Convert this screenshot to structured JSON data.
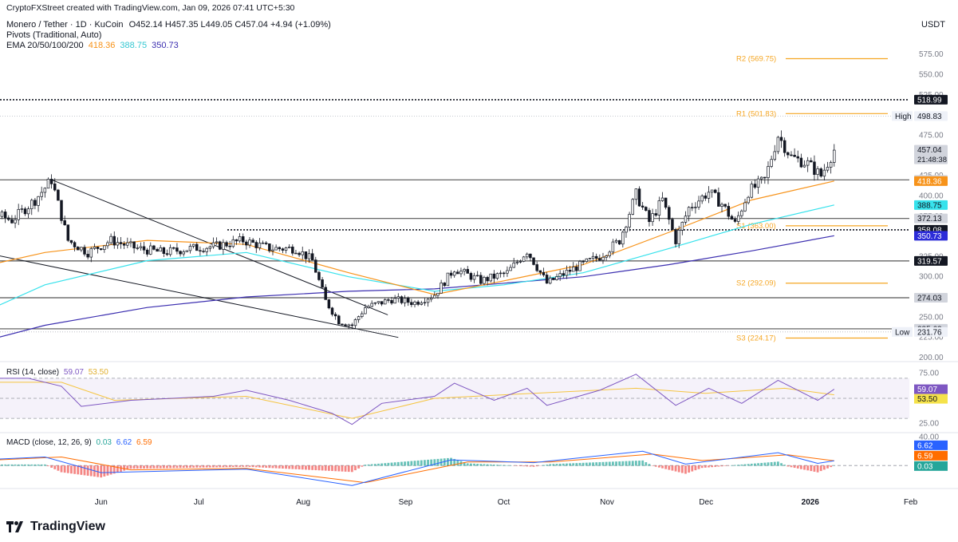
{
  "header": {
    "creator": "CryptoFXStreet created with TradingView.com, Jan 09, 2026 07:41 UTC+5:30",
    "symbol": "Monero / Tether · 1D · KuCoin",
    "ohlc": "O452.14  H457.35  L449.05  C457.04  +4.94 (+1.09%)",
    "pivots_label": "Pivots (Traditional, Auto)",
    "ema_label": "EMA 20/50/100/200",
    "ema_values": [
      "418.36",
      "388.75",
      "350.73"
    ],
    "currency": "USDT"
  },
  "brand": {
    "name": "TradingView"
  },
  "colors": {
    "up": "#089981",
    "down": "#f23645",
    "candle": "#131722",
    "ema50": "#f7931a",
    "ema100": "#37e2ec",
    "ema200": "#3c2fb0",
    "pivot": "#f5a623",
    "rsi": "#7e57c2",
    "rsi_ma": "#f5c542",
    "macd": "#2962ff",
    "signal": "#ff6d00"
  },
  "chart_data": [
    {
      "type": "candlestick",
      "name": "price",
      "ylim": [
        200,
        590
      ],
      "y_ticks": [
        200,
        225,
        250,
        275,
        300,
        325,
        350,
        375,
        400,
        425,
        450,
        475,
        500,
        525,
        550,
        575
      ],
      "y_tick_labels": [
        "200.00",
        "225.00",
        "250.00",
        "275.00",
        "300.00",
        "325.00",
        "350.00",
        "375.00",
        "400.00",
        "425.00",
        "450.00",
        "475.00",
        "500.00",
        "525.00",
        "550.00",
        "575.00"
      ],
      "x_labels": [
        {
          "date": "2025-06-01",
          "label": "Jun"
        },
        {
          "date": "2025-07-01",
          "label": "Jul"
        },
        {
          "date": "2025-08-01",
          "label": "Aug"
        },
        {
          "date": "2025-09-01",
          "label": "Sep"
        },
        {
          "date": "2025-10-01",
          "label": "Oct"
        },
        {
          "date": "2025-11-01",
          "label": "Nov"
        },
        {
          "date": "2025-12-01",
          "label": "Dec"
        },
        {
          "date": "2026-01-01",
          "label": "2026"
        },
        {
          "date": "2026-02-01",
          "label": "Feb"
        }
      ],
      "close_path": [
        [
          "2025-04-12",
          300
        ],
        [
          "2025-04-20",
          340
        ],
        [
          "2025-04-28",
          380
        ],
        [
          "2025-05-05",
          370
        ],
        [
          "2025-05-12",
          395
        ],
        [
          "2025-05-17",
          420
        ],
        [
          "2025-05-22",
          345
        ],
        [
          "2025-05-28",
          330
        ],
        [
          "2025-06-04",
          345
        ],
        [
          "2025-06-12",
          335
        ],
        [
          "2025-06-20",
          330
        ],
        [
          "2025-06-28",
          335
        ],
        [
          "2025-07-06",
          338
        ],
        [
          "2025-07-14",
          345
        ],
        [
          "2025-07-22",
          335
        ],
        [
          "2025-07-30",
          335
        ],
        [
          "2025-08-04",
          320
        ],
        [
          "2025-08-08",
          270
        ],
        [
          "2025-08-12",
          245
        ],
        [
          "2025-08-16",
          240
        ],
        [
          "2025-08-20",
          262
        ],
        [
          "2025-08-28",
          272
        ],
        [
          "2025-09-04",
          268
        ],
        [
          "2025-09-10",
          278
        ],
        [
          "2025-09-16",
          310
        ],
        [
          "2025-09-24",
          295
        ],
        [
          "2025-10-02",
          305
        ],
        [
          "2025-10-08",
          332
        ],
        [
          "2025-10-14",
          292
        ],
        [
          "2025-10-22",
          310
        ],
        [
          "2025-10-30",
          325
        ],
        [
          "2025-11-05",
          345
        ],
        [
          "2025-11-10",
          402
        ],
        [
          "2025-11-14",
          368
        ],
        [
          "2025-11-18",
          395
        ],
        [
          "2025-11-22",
          345
        ],
        [
          "2025-11-26",
          385
        ],
        [
          "2025-12-02",
          405
        ],
        [
          "2025-12-06",
          390
        ],
        [
          "2025-12-10",
          365
        ],
        [
          "2025-12-14",
          405
        ],
        [
          "2025-12-19",
          420
        ],
        [
          "2025-12-23",
          475
        ],
        [
          "2025-12-27",
          448
        ],
        [
          "2026-01-01",
          440
        ],
        [
          "2026-01-05",
          425
        ],
        [
          "2026-01-09",
          457
        ]
      ],
      "ema_50": [
        [
          "2025-04-12",
          300
        ],
        [
          "2025-05-15",
          330
        ],
        [
          "2025-06-15",
          345
        ],
        [
          "2025-07-15",
          340
        ],
        [
          "2025-08-15",
          305
        ],
        [
          "2025-09-10",
          278
        ],
        [
          "2025-10-01",
          295
        ],
        [
          "2025-10-25",
          315
        ],
        [
          "2025-11-20",
          355
        ],
        [
          "2025-12-15",
          395
        ],
        [
          "2026-01-09",
          418.36
        ]
      ],
      "ema_100": [
        [
          "2025-04-12",
          230
        ],
        [
          "2025-05-15",
          290
        ],
        [
          "2025-06-15",
          320
        ],
        [
          "2025-07-15",
          330
        ],
        [
          "2025-08-15",
          300
        ],
        [
          "2025-09-10",
          282
        ],
        [
          "2025-10-01",
          290
        ],
        [
          "2025-10-25",
          305
        ],
        [
          "2025-11-20",
          335
        ],
        [
          "2025-12-15",
          365
        ],
        [
          "2026-01-09",
          388.75
        ]
      ],
      "ema_200": [
        [
          "2025-04-12",
          205
        ],
        [
          "2025-05-15",
          240
        ],
        [
          "2025-06-15",
          262
        ],
        [
          "2025-07-15",
          275
        ],
        [
          "2025-08-15",
          282
        ],
        [
          "2025-09-10",
          285
        ],
        [
          "2025-10-01",
          292
        ],
        [
          "2025-10-25",
          300
        ],
        [
          "2025-11-20",
          315
        ],
        [
          "2025-12-15",
          332
        ],
        [
          "2026-01-09",
          350.73
        ]
      ],
      "pivots": [
        {
          "name": "R2",
          "label": "R2 (569.75)",
          "value": 569.75
        },
        {
          "name": "R1",
          "label": "R1 (501.83)",
          "value": 501.83
        },
        {
          "name": "S1",
          "label": "S1 (363.00)",
          "value": 363.0
        },
        {
          "name": "S2",
          "label": "S2 (292.09)",
          "value": 292.09
        },
        {
          "name": "S3",
          "label": "S3 (224.17)",
          "value": 224.17
        }
      ],
      "horizontal_levels": [
        419.85,
        372.13,
        319.57,
        274.03,
        235.63
      ],
      "dotted_levels": [
        518.99,
        358.08
      ],
      "trendline": {
        "start": [
          "2025-05-17",
          420
        ],
        "end": [
          "2025-08-22",
          245
        ]
      },
      "trendline_lower": {
        "start": [
          "2025-05-01",
          340
        ],
        "end": [
          "2025-08-30",
          225
        ]
      },
      "price_badges": [
        {
          "value": 518.99,
          "label": "518.99",
          "style": "black"
        },
        {
          "value": 498.83,
          "label": "498.83",
          "tag": "High",
          "style": "plain"
        },
        {
          "value": 457.04,
          "label": "457.04",
          "sub": "21:48:38",
          "style": "grey"
        },
        {
          "value": 419.85,
          "label": "419.85",
          "style": "grey"
        },
        {
          "value": 418.36,
          "label": "418.36",
          "style": "orange"
        },
        {
          "value": 388.75,
          "label": "388.75",
          "style": "cyan"
        },
        {
          "value": 372.13,
          "label": "372.13",
          "style": "grey"
        },
        {
          "value": 358.08,
          "label": "358.08",
          "style": "black"
        },
        {
          "value": 350.73,
          "label": "350.73",
          "style": "blue"
        },
        {
          "value": 319.57,
          "label": "319.57",
          "style": "black"
        },
        {
          "value": 274.03,
          "label": "274.03",
          "style": "grey"
        },
        {
          "value": 235.63,
          "label": "235.63",
          "style": "grey"
        },
        {
          "value": 231.76,
          "label": "231.76",
          "tag": "Low",
          "style": "plain"
        }
      ]
    },
    {
      "type": "line",
      "name": "rsi",
      "label": "RSI (14, close)",
      "values_label": [
        "59.07",
        "53.50"
      ],
      "ylim": [
        15,
        85
      ],
      "y_ticks": [
        25,
        50,
        75
      ],
      "y_tick_labels": [
        "25.00",
        "50.00",
        "75.00"
      ],
      "band": [
        30,
        70
      ],
      "rsi_path": [
        [
          "2025-04-12",
          70
        ],
        [
          "2025-05-10",
          70
        ],
        [
          "2025-05-20",
          62
        ],
        [
          "2025-05-26",
          42
        ],
        [
          "2025-06-10",
          48
        ],
        [
          "2025-07-05",
          52
        ],
        [
          "2025-07-15",
          58
        ],
        [
          "2025-07-28",
          48
        ],
        [
          "2025-08-10",
          35
        ],
        [
          "2025-08-16",
          24
        ],
        [
          "2025-08-25",
          45
        ],
        [
          "2025-09-10",
          52
        ],
        [
          "2025-09-16",
          65
        ],
        [
          "2025-09-28",
          48
        ],
        [
          "2025-10-08",
          60
        ],
        [
          "2025-10-14",
          43
        ],
        [
          "2025-10-30",
          58
        ],
        [
          "2025-11-10",
          74
        ],
        [
          "2025-11-22",
          43
        ],
        [
          "2025-12-02",
          60
        ],
        [
          "2025-12-12",
          45
        ],
        [
          "2025-12-23",
          68
        ],
        [
          "2026-01-04",
          48
        ],
        [
          "2026-01-09",
          59.07
        ]
      ],
      "rsi_ma_path": [
        [
          "2025-04-12",
          66
        ],
        [
          "2025-05-20",
          66
        ],
        [
          "2025-06-05",
          48
        ],
        [
          "2025-07-15",
          52
        ],
        [
          "2025-08-16",
          30
        ],
        [
          "2025-09-10",
          50
        ],
        [
          "2025-10-10",
          55
        ],
        [
          "2025-11-10",
          60
        ],
        [
          "2025-12-01",
          55
        ],
        [
          "2025-12-25",
          60
        ],
        [
          "2026-01-09",
          53.5
        ]
      ],
      "badges": [
        {
          "value": 59.07,
          "label": "59.07"
        },
        {
          "value": 53.5,
          "label": "53.50"
        }
      ]
    },
    {
      "type": "line",
      "name": "macd",
      "label": "MACD (close, 12, 26, 9)",
      "values_label": [
        "0.03",
        "6.62",
        "6.59"
      ],
      "ylim": [
        -30,
        45
      ],
      "y_ticks": [
        40
      ],
      "y_tick_labels": [
        "40.00"
      ],
      "macd_path": [
        [
          "2025-04-12",
          5
        ],
        [
          "2025-05-15",
          12
        ],
        [
          "2025-06-01",
          -10
        ],
        [
          "2025-07-15",
          -5
        ],
        [
          "2025-08-16",
          -28
        ],
        [
          "2025-09-15",
          8
        ],
        [
          "2025-10-10",
          4
        ],
        [
          "2025-11-12",
          20
        ],
        [
          "2025-11-25",
          2
        ],
        [
          "2025-12-23",
          18
        ],
        [
          "2026-01-04",
          3
        ],
        [
          "2026-01-09",
          6.62
        ]
      ],
      "signal_path": [
        [
          "2025-04-12",
          4
        ],
        [
          "2025-05-20",
          12
        ],
        [
          "2025-06-10",
          -6
        ],
        [
          "2025-07-15",
          -4
        ],
        [
          "2025-08-20",
          -24
        ],
        [
          "2025-09-20",
          5
        ],
        [
          "2025-10-15",
          5
        ],
        [
          "2025-11-15",
          16
        ],
        [
          "2025-11-30",
          7
        ],
        [
          "2025-12-26",
          15
        ],
        [
          "2026-01-09",
          6.59
        ]
      ],
      "badges": [
        {
          "value": 6.62,
          "label": "6.62",
          "style": "blue"
        },
        {
          "value": 6.59,
          "label": "6.59",
          "style": "orange"
        },
        {
          "value": 0.03,
          "label": "0.03",
          "style": "teal"
        }
      ]
    }
  ]
}
